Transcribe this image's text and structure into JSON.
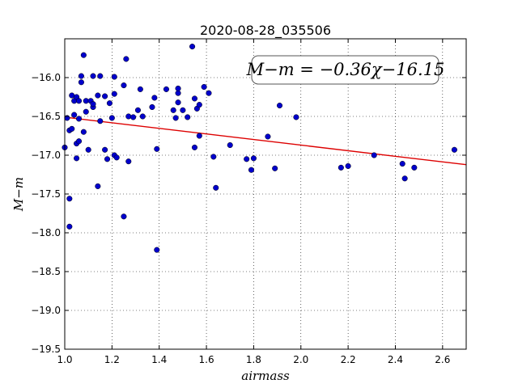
{
  "chart_data": {
    "type": "scatter",
    "title": "2020-08-28_035506",
    "xlabel": "airmass",
    "ylabel": "M−m",
    "xlim": [
      1.0,
      2.7
    ],
    "ylim": [
      -19.5,
      -15.5
    ],
    "y_inverted": true,
    "grid": true,
    "x_ticks": [
      1.0,
      1.2,
      1.4,
      1.6,
      1.8,
      2.0,
      2.2,
      2.4,
      2.6
    ],
    "x_tick_labels": [
      "1.0",
      "1.2",
      "1.4",
      "1.6",
      "1.8",
      "2.0",
      "2.2",
      "2.4",
      "2.6"
    ],
    "y_ticks": [
      -16.0,
      -16.5,
      -17.0,
      -17.5,
      -18.0,
      -18.5,
      -19.0,
      -19.5
    ],
    "y_tick_labels": [
      "−16.0",
      "−16.5",
      "−17.0",
      "−17.5",
      "−18.0",
      "−18.5",
      "−19.0",
      "−19.5"
    ],
    "annotation": "M−m = −0.36χ−16.15",
    "marker_color": "#0000cc",
    "fit_color": "#dd0000",
    "fit": {
      "slope": -0.36,
      "intercept": -16.15
    },
    "points": [
      [
        1.0,
        -16.9
      ],
      [
        1.01,
        -16.52
      ],
      [
        1.02,
        -16.68
      ],
      [
        1.02,
        -17.56
      ],
      [
        1.02,
        -17.92
      ],
      [
        1.03,
        -16.66
      ],
      [
        1.03,
        -16.23
      ],
      [
        1.04,
        -16.48
      ],
      [
        1.04,
        -16.3
      ],
      [
        1.05,
        -16.25
      ],
      [
        1.05,
        -16.85
      ],
      [
        1.05,
        -17.04
      ],
      [
        1.06,
        -16.53
      ],
      [
        1.06,
        -16.3
      ],
      [
        1.06,
        -16.82
      ],
      [
        1.07,
        -16.06
      ],
      [
        1.07,
        -15.98
      ],
      [
        1.08,
        -16.7
      ],
      [
        1.08,
        -15.71
      ],
      [
        1.09,
        -16.3
      ],
      [
        1.09,
        -16.44
      ],
      [
        1.1,
        -16.93
      ],
      [
        1.11,
        -16.3
      ],
      [
        1.12,
        -16.38
      ],
      [
        1.12,
        -16.34
      ],
      [
        1.12,
        -15.98
      ],
      [
        1.14,
        -16.23
      ],
      [
        1.15,
        -16.56
      ],
      [
        1.15,
        -15.98
      ],
      [
        1.14,
        -17.4
      ],
      [
        1.17,
        -16.93
      ],
      [
        1.17,
        -16.24
      ],
      [
        1.18,
        -17.05
      ],
      [
        1.19,
        -16.33
      ],
      [
        1.2,
        -16.52
      ],
      [
        1.21,
        -16.21
      ],
      [
        1.21,
        -15.99
      ],
      [
        1.21,
        -17.0
      ],
      [
        1.22,
        -17.03
      ],
      [
        1.25,
        -16.1
      ],
      [
        1.25,
        -17.79
      ],
      [
        1.26,
        -15.76
      ],
      [
        1.27,
        -16.5
      ],
      [
        1.27,
        -17.08
      ],
      [
        1.29,
        -16.51
      ],
      [
        1.31,
        -16.42
      ],
      [
        1.32,
        -16.15
      ],
      [
        1.33,
        -16.5
      ],
      [
        1.37,
        -16.38
      ],
      [
        1.38,
        -16.26
      ],
      [
        1.39,
        -16.92
      ],
      [
        1.39,
        -18.22
      ],
      [
        1.43,
        -16.15
      ],
      [
        1.46,
        -16.42
      ],
      [
        1.47,
        -16.52
      ],
      [
        1.48,
        -16.2
      ],
      [
        1.48,
        -16.32
      ],
      [
        1.48,
        -16.14
      ],
      [
        1.5,
        -16.42
      ],
      [
        1.52,
        -16.51
      ],
      [
        1.54,
        -15.6
      ],
      [
        1.55,
        -16.27
      ],
      [
        1.55,
        -16.9
      ],
      [
        1.56,
        -16.4
      ],
      [
        1.57,
        -16.35
      ],
      [
        1.57,
        -16.75
      ],
      [
        1.59,
        -16.12
      ],
      [
        1.61,
        -16.2
      ],
      [
        1.63,
        -17.02
      ],
      [
        1.64,
        -17.42
      ],
      [
        1.7,
        -16.87
      ],
      [
        1.77,
        -17.05
      ],
      [
        1.79,
        -17.19
      ],
      [
        1.8,
        -17.04
      ],
      [
        1.86,
        -16.76
      ],
      [
        1.89,
        -17.17
      ],
      [
        1.91,
        -16.36
      ],
      [
        1.98,
        -16.51
      ],
      [
        2.17,
        -17.16
      ],
      [
        2.2,
        -17.14
      ],
      [
        2.31,
        -17.0
      ],
      [
        2.43,
        -17.11
      ],
      [
        2.44,
        -17.3
      ],
      [
        2.48,
        -17.16
      ],
      [
        2.65,
        -16.93
      ]
    ]
  }
}
